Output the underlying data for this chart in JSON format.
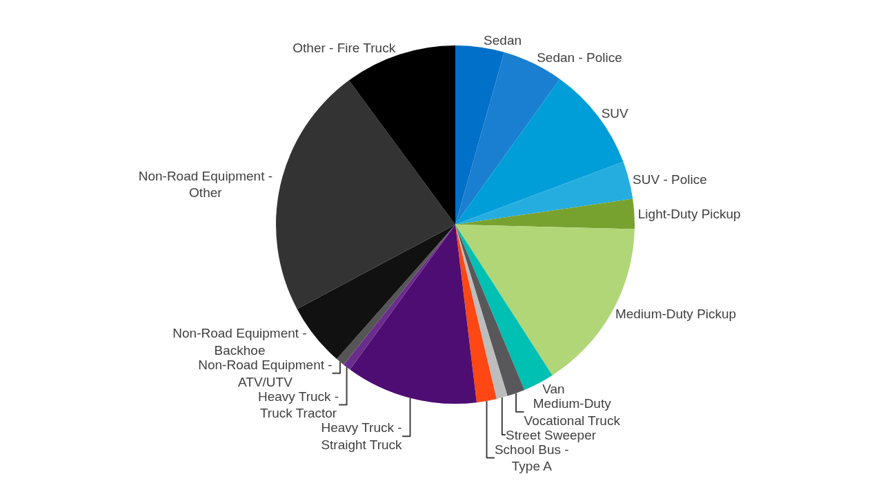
{
  "chart_data": {
    "type": "pie",
    "categories": [
      "Sedan",
      "Sedan - Police",
      "SUV",
      "SUV - Police",
      "Light-Duty Pickup",
      "Medium-Duty Pickup",
      "Van",
      "Medium-Duty Vocational Truck",
      "Street Sweeper",
      "School Bus - Type A",
      "Heavy Truck - Straight Truck",
      "Heavy Truck - Truck Tractor",
      "Non-Road Equipment - ATV/UTV",
      "Non-Road Equipment - Backhoe",
      "Non-Road Equipment - Other",
      "Other - Fire Truck"
    ],
    "values": [
      4.4,
      5.5,
      9.4,
      3.4,
      2.7,
      15.5,
      2.8,
      1.6,
      1.0,
      1.8,
      11.9,
      0.7,
      0.8,
      5.7,
      22.7,
      10.1
    ],
    "colors": [
      "#0070c8",
      "#1a7fd0",
      "#009ed8",
      "#26addf",
      "#78a22f",
      "#b0d678",
      "#00bfb3",
      "#58585a",
      "#bdbdbd",
      "#ff4713",
      "#4e0d73",
      "#6a2d8c",
      "#555555",
      "#111111",
      "#333333",
      "#000000"
    ],
    "legend": false
  }
}
